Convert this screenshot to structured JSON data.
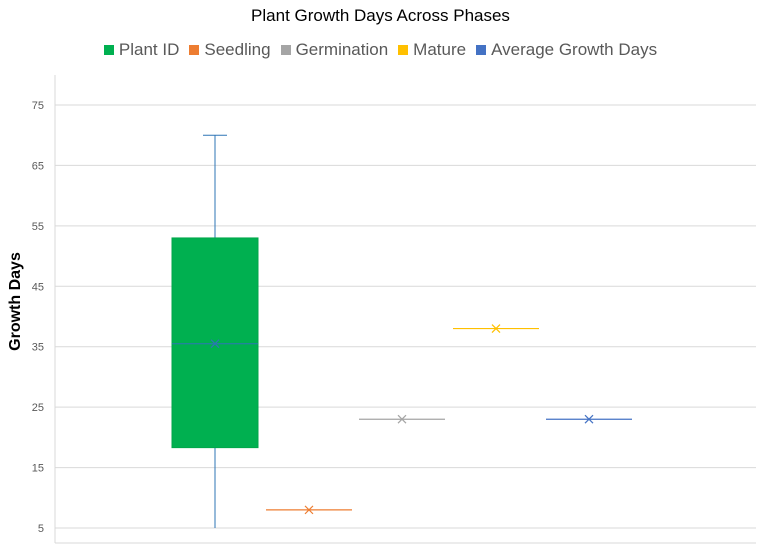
{
  "chart_data": {
    "type": "boxplot",
    "title": "Plant Growth Days Across Phases",
    "xlabel": "",
    "ylabel": "Growth Days",
    "ylim": [
      5,
      80
    ],
    "yticks": [
      5,
      15,
      25,
      35,
      45,
      55,
      65,
      75
    ],
    "grid": true,
    "legend_position": "top",
    "series": [
      {
        "name": "Plant ID",
        "color": "#00b050",
        "min": 5,
        "q1": 18.3,
        "median": 35.5,
        "mean": 35.5,
        "q3": 53,
        "max": 70
      },
      {
        "name": "Seedling",
        "color": "#ed7d31",
        "min": 8,
        "q1": 8,
        "median": 8,
        "mean": 8,
        "q3": 8,
        "max": 8
      },
      {
        "name": "Germination",
        "color": "#a5a5a5",
        "min": 23,
        "q1": 23,
        "median": 23,
        "mean": 23,
        "q3": 23,
        "max": 23
      },
      {
        "name": "Mature",
        "color": "#ffc000",
        "min": 38,
        "q1": 38,
        "median": 38,
        "mean": 38,
        "q3": 38,
        "max": 38
      },
      {
        "name": "Average Growth Days",
        "color": "#4472c4",
        "min": 23,
        "q1": 23,
        "median": 23,
        "mean": 23,
        "q3": 23,
        "max": 23
      }
    ]
  }
}
